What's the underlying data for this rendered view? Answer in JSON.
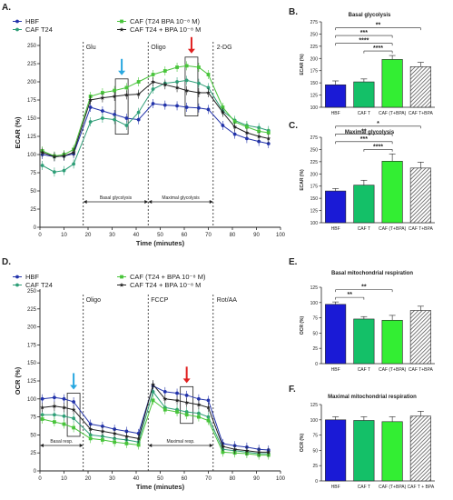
{
  "colors": {
    "hbf": "#2233aa",
    "caf_t24": "#2e9e77",
    "caf_t24_bpa": "#48c43a",
    "caf_t24_plus_bpa": "#222222",
    "bar_hbf": "#1a1ad6",
    "bar_caft": "#14c068",
    "bar_caftbpa": "#33ee33",
    "bar_hatch": "#888888"
  },
  "legend_top": [
    "HBF",
    "CAF T24",
    "CAF (T24 BPA 10⁻⁸ M)",
    "CAF T24 + BPA 10⁻⁸ M"
  ],
  "legend_bottom": [
    "HBF",
    "CAF T24",
    "CAF (T24 + BPA 10⁻⁸ M)",
    "CAF T24 + BPA 10⁻⁸ M"
  ],
  "chart_data": [
    {
      "panel": "A.",
      "type": "line",
      "xlabel": "Time (minutes)",
      "ylabel": "ECAR (%)",
      "xlim": [
        0,
        100
      ],
      "ylim": [
        0,
        260
      ],
      "xticks": [
        0,
        10,
        20,
        30,
        40,
        50,
        60,
        70,
        80,
        90,
        100
      ],
      "yticks": [
        0,
        25,
        50,
        75,
        100,
        125,
        150,
        175,
        200,
        225,
        250
      ],
      "injections": [
        {
          "label": "Glu",
          "x": 18
        },
        {
          "label": "Oligo",
          "x": 45
        },
        {
          "label": "2-DG",
          "x": 72
        }
      ],
      "phases": [
        {
          "label": "Basal glycolysis",
          "from": 18,
          "to": 45
        },
        {
          "label": "Maximal glycolysis",
          "from": 45,
          "to": 72
        }
      ],
      "arrows": [
        {
          "x": 34,
          "color": "#29a8e0"
        },
        {
          "x": 63,
          "color": "#e02020"
        }
      ],
      "x": [
        1,
        6,
        10,
        14,
        21,
        26,
        31,
        36,
        41,
        47,
        52,
        57,
        61,
        66,
        70,
        76,
        81,
        86,
        91,
        95
      ],
      "series": [
        {
          "name": "HBF",
          "values": [
            100,
            97,
            98,
            101,
            165,
            160,
            155,
            150,
            148,
            170,
            168,
            167,
            165,
            164,
            162,
            140,
            128,
            122,
            118,
            115
          ]
        },
        {
          "name": "CAF T24",
          "values": [
            85,
            76,
            78,
            87,
            145,
            150,
            148,
            140,
            158,
            190,
            198,
            200,
            202,
            198,
            192,
            160,
            147,
            140,
            137,
            133
          ]
        },
        {
          "name": "CAF (T24 BPA 10⁻⁸ M)",
          "values": [
            105,
            98,
            100,
            107,
            180,
            185,
            188,
            192,
            200,
            210,
            215,
            220,
            222,
            220,
            210,
            165,
            145,
            138,
            132,
            130
          ]
        },
        {
          "name": "CAF T24 + BPA 10⁻⁸ M",
          "values": [
            103,
            97,
            98,
            103,
            175,
            178,
            180,
            182,
            183,
            200,
            196,
            192,
            188,
            185,
            185,
            158,
            138,
            130,
            125,
            122
          ]
        }
      ]
    },
    {
      "panel": "B.",
      "type": "bar",
      "title": "Basal glycolysis",
      "ylabel": "ECAR (%)",
      "ylim": [
        100,
        275
      ],
      "yticks": [
        100,
        125,
        150,
        175,
        200,
        225,
        250,
        275
      ],
      "categories": [
        "HBF",
        "CAF T",
        "CAF (T+BPA)",
        "CAF T+BPA"
      ],
      "values": [
        146,
        152,
        198,
        183
      ],
      "errors": [
        8,
        6,
        8,
        9
      ],
      "significance": [
        {
          "from": 0,
          "to": 3,
          "label": "**"
        },
        {
          "from": 0,
          "to": 2,
          "label": "***"
        },
        {
          "from": 0,
          "to": 2,
          "label": "****"
        },
        {
          "from": 1,
          "to": 2,
          "label": "****"
        }
      ]
    },
    {
      "panel": "C.",
      "type": "bar",
      "title": "Maximal glycolysis",
      "ylabel": "ECAR (%)",
      "ylim": [
        100,
        275
      ],
      "yticks": [
        100,
        125,
        150,
        175,
        200,
        225,
        250,
        275
      ],
      "categories": [
        "HBF",
        "CAF T",
        "CAF (T+BPA)",
        "CAF T+BPA"
      ],
      "values": [
        165,
        177,
        226,
        212
      ],
      "errors": [
        5,
        10,
        15,
        12
      ],
      "significance": [
        {
          "from": 0,
          "to": 3,
          "label": "*"
        },
        {
          "from": 0,
          "to": 2,
          "label": "**"
        },
        {
          "from": 0,
          "to": 2,
          "label": "***"
        },
        {
          "from": 1,
          "to": 2,
          "label": "****"
        }
      ]
    },
    {
      "panel": "D.",
      "type": "line",
      "xlabel": "Time (minutes)",
      "ylabel": "OCR (%)",
      "xlim": [
        0,
        100
      ],
      "ylim": [
        0,
        250
      ],
      "xticks": [
        0,
        10,
        20,
        30,
        40,
        50,
        60,
        70,
        80,
        90,
        100
      ],
      "yticks": [
        0,
        25,
        50,
        75,
        100,
        125,
        150,
        175,
        200,
        225,
        250
      ],
      "injections": [
        {
          "label": "Oligo",
          "x": 18
        },
        {
          "label": "FCCP",
          "x": 45
        },
        {
          "label": "Rot/AA",
          "x": 72
        }
      ],
      "phases": [
        {
          "label": "Basal resp.",
          "from": 0,
          "to": 18
        },
        {
          "label": "Maximal resp.",
          "from": 45,
          "to": 72
        }
      ],
      "arrows": [
        {
          "x": 14,
          "color": "#29a8e0"
        },
        {
          "x": 61,
          "color": "#e02020"
        }
      ],
      "x": [
        1,
        6,
        10,
        14,
        21,
        26,
        31,
        36,
        41,
        47,
        52,
        57,
        61,
        66,
        70,
        76,
        81,
        86,
        91,
        95
      ],
      "series": [
        {
          "name": "HBF",
          "values": [
            100,
            102,
            100,
            96,
            65,
            62,
            58,
            55,
            52,
            118,
            110,
            108,
            105,
            100,
            98,
            38,
            35,
            33,
            30,
            29
          ]
        },
        {
          "name": "CAF T24",
          "values": [
            78,
            78,
            76,
            73,
            50,
            48,
            45,
            43,
            40,
            110,
            88,
            85,
            82,
            80,
            75,
            30,
            28,
            26,
            24,
            24
          ]
        },
        {
          "name": "CAF (T24 + BPA 10⁻⁸ M)",
          "values": [
            72,
            68,
            65,
            60,
            45,
            43,
            40,
            38,
            36,
            98,
            85,
            82,
            78,
            75,
            70,
            26,
            25,
            24,
            22,
            22
          ]
        },
        {
          "name": "CAF T24 + BPA 10⁻⁸ M",
          "values": [
            88,
            90,
            88,
            85,
            58,
            55,
            52,
            48,
            45,
            120,
            100,
            98,
            95,
            92,
            88,
            34,
            30,
            28,
            26,
            26
          ]
        }
      ]
    },
    {
      "panel": "E.",
      "type": "bar",
      "title": "Basal mitochondrial respiration",
      "ylabel": "OCR (%)",
      "ylim": [
        0,
        125
      ],
      "yticks": [
        0,
        25,
        50,
        75,
        100,
        125
      ],
      "categories": [
        "HBF",
        "CAF T",
        "CAF (T+BPA)",
        "CAF T+BPA"
      ],
      "values": [
        97,
        73,
        71,
        87
      ],
      "errors": [
        4,
        4,
        8,
        7
      ],
      "significance": [
        {
          "from": 0,
          "to": 2,
          "label": "**"
        },
        {
          "from": 0,
          "to": 1,
          "label": "**"
        }
      ]
    },
    {
      "panel": "F.",
      "type": "bar",
      "title": "Maximal mitochondrial respiration",
      "ylabel": "OCR (%)",
      "ylim": [
        0,
        125
      ],
      "yticks": [
        0,
        25,
        50,
        75,
        100,
        125
      ],
      "categories": [
        "HBF",
        "CAF T",
        "CAF (T+BPA)",
        "CAF T + BPA"
      ],
      "values": [
        100,
        99,
        97,
        106
      ],
      "errors": [
        5,
        6,
        8,
        8
      ],
      "significance": []
    }
  ]
}
